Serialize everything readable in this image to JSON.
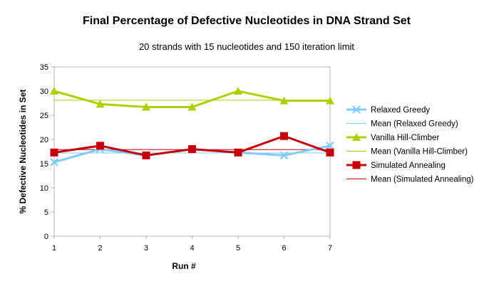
{
  "chart_data": {
    "type": "line",
    "title": "Final Percentage of Defective Nucleotides in DNA Strand Set",
    "subtitle": "20 strands with 15 nucleotides and 150 iteration limit",
    "xlabel": "Run #",
    "ylabel": "% Defective Nucleotides in Set",
    "x": [
      1,
      2,
      3,
      4,
      5,
      6,
      7
    ],
    "xlim": [
      1,
      7
    ],
    "ylim": [
      0,
      35
    ],
    "yticks": [
      0,
      5,
      10,
      15,
      20,
      25,
      30,
      35
    ],
    "grid": false,
    "legend_position": "right",
    "series": [
      {
        "name": "Relaxed Greedy",
        "values": [
          15.3,
          18.0,
          16.7,
          18.0,
          17.3,
          16.7,
          18.7
        ],
        "color": "#83caff",
        "marker": "x"
      },
      {
        "name": "Mean (Relaxed Greedy)",
        "mean_line": true,
        "value": 17.2,
        "color": "#83caff"
      },
      {
        "name": "Vanilla Hill-Climber",
        "values": [
          30.0,
          27.3,
          26.7,
          26.7,
          30.0,
          28.0,
          28.0
        ],
        "color": "#aecf00",
        "marker": "triangle"
      },
      {
        "name": "Mean (Vanilla Hill-Climber)",
        "mean_line": true,
        "value": 28.1,
        "color": "#aecf00"
      },
      {
        "name": "Simulated Annealing",
        "values": [
          17.3,
          18.7,
          16.7,
          18.0,
          17.3,
          20.7,
          17.3
        ],
        "color": "#c5000b",
        "marker": "square"
      },
      {
        "name": "Mean (Simulated Annealing)",
        "mean_line": true,
        "value": 17.9,
        "color": "#c5000b"
      }
    ]
  }
}
